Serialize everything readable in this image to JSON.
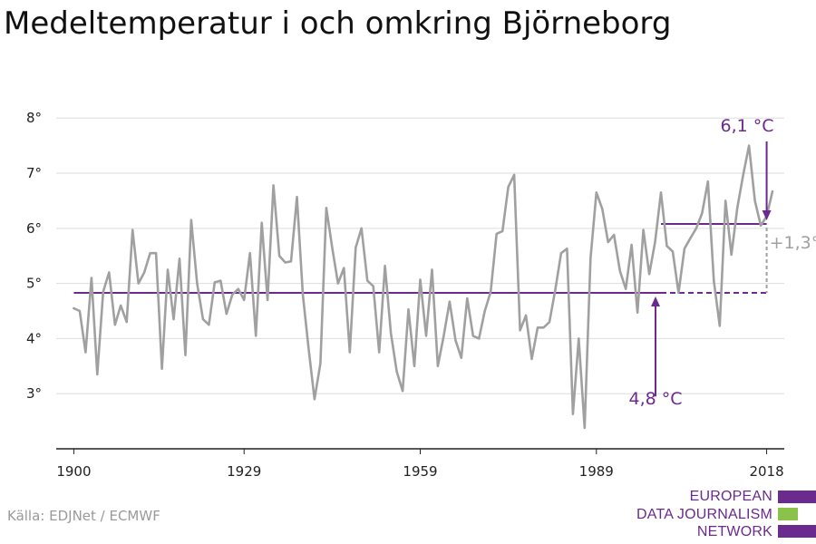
{
  "title": "Medeltemperatur i och omkring Björneborg",
  "source": "Källa: EDJNet / ECMWF",
  "logo": {
    "lines": [
      "EUROPEAN",
      "DATA JOURNALISM",
      "NETWORK"
    ],
    "text_color": "#6a2a8e",
    "bar_colors": [
      "#6a2a8e",
      "#8bc34a",
      "#6a2a8e"
    ]
  },
  "colors": {
    "line": "#a0a0a0",
    "accent": "#6a2a8e",
    "diff": "#a0a0a0",
    "grid": "#dddddd",
    "axis": "#222222"
  },
  "chart_data": {
    "type": "line",
    "ylim": [
      2,
      8.3
    ],
    "xlim": [
      1897,
      2021
    ],
    "yticks": [
      3,
      4,
      5,
      6,
      7,
      8
    ],
    "ytick_labels": [
      "3°",
      "4°",
      "5°",
      "6°",
      "7°",
      "8°"
    ],
    "xticks": [
      1900,
      1929,
      1959,
      1989,
      2018
    ],
    "xtick_labels": [
      "1900",
      "1929",
      "1959",
      "1989",
      "2018"
    ],
    "series": [
      {
        "x": [
          1900,
          1901,
          1902,
          1903,
          1904,
          1905,
          1906,
          1907,
          1908,
          1909,
          1910,
          1911,
          1912,
          1913,
          1914,
          1915,
          1916,
          1917,
          1918,
          1919,
          1920,
          1921,
          1922,
          1923,
          1924,
          1925,
          1926,
          1927,
          1928,
          1929,
          1930,
          1931,
          1932,
          1933,
          1934,
          1935,
          1936,
          1937,
          1938,
          1939,
          1940,
          1941,
          1942,
          1943,
          1944,
          1945,
          1946,
          1947,
          1948,
          1949,
          1950,
          1951,
          1952,
          1953,
          1954,
          1955,
          1956,
          1957,
          1958,
          1959,
          1960,
          1961,
          1962,
          1963,
          1964,
          1965,
          1966,
          1967,
          1968,
          1969,
          1970,
          1971,
          1972,
          1973,
          1974,
          1975,
          1976,
          1977,
          1978,
          1979,
          1980,
          1981,
          1982,
          1983,
          1984,
          1985,
          1986,
          1987,
          1988,
          1989,
          1990,
          1991,
          1992,
          1993,
          1994,
          1995,
          1996,
          1997,
          1998,
          1999,
          2000,
          2001,
          2002,
          2003,
          2004,
          2005,
          2006,
          2007,
          2008,
          2009,
          2010,
          2011,
          2012,
          2013,
          2014,
          2015,
          2016,
          2017,
          2018,
          2019
        ],
        "values": [
          4.55,
          4.5,
          3.75,
          5.1,
          3.35,
          4.85,
          5.2,
          4.25,
          4.6,
          4.3,
          5.97,
          5.0,
          5.2,
          5.55,
          5.55,
          3.45,
          5.25,
          4.35,
          5.45,
          3.7,
          6.15,
          5.0,
          4.35,
          4.25,
          5.02,
          5.05,
          4.45,
          4.8,
          4.9,
          4.7,
          5.55,
          4.05,
          6.1,
          4.7,
          6.78,
          5.5,
          5.38,
          5.4,
          6.57,
          4.8,
          3.8,
          2.9,
          3.55,
          6.37,
          5.65,
          5.0,
          5.28,
          3.75,
          5.65,
          6.0,
          5.05,
          4.95,
          3.75,
          5.32,
          4.1,
          3.4,
          3.05,
          4.53,
          3.5,
          5.07,
          4.05,
          5.25,
          3.5,
          4.05,
          4.67,
          3.97,
          3.65,
          4.73,
          4.05,
          4.0,
          4.5,
          4.85,
          5.9,
          5.95,
          6.75,
          6.97,
          4.15,
          4.42,
          3.63,
          4.2,
          4.2,
          4.3,
          4.88,
          5.55,
          5.63,
          2.63,
          4.0,
          2.38,
          5.45,
          6.65,
          6.35,
          5.75,
          5.88,
          5.23,
          4.9,
          5.7,
          4.47,
          5.97,
          5.17,
          5.75,
          6.65,
          5.68,
          5.58,
          4.83,
          5.63,
          5.82,
          6.0,
          6.27,
          6.85,
          5.05,
          4.23,
          6.5,
          5.52,
          6.37,
          6.97,
          7.5,
          6.5,
          6.05,
          6.22,
          6.67
        ]
      }
    ],
    "reference_lines": [
      {
        "from": 1900,
        "to": 2000,
        "value": 4.83
      },
      {
        "from": 2000,
        "to": 2018,
        "value": 6.08
      }
    ],
    "annotations": {
      "past_label": "4,8 °C",
      "recent_label": "6,1 °C",
      "diff_label": "+1,3°"
    }
  }
}
